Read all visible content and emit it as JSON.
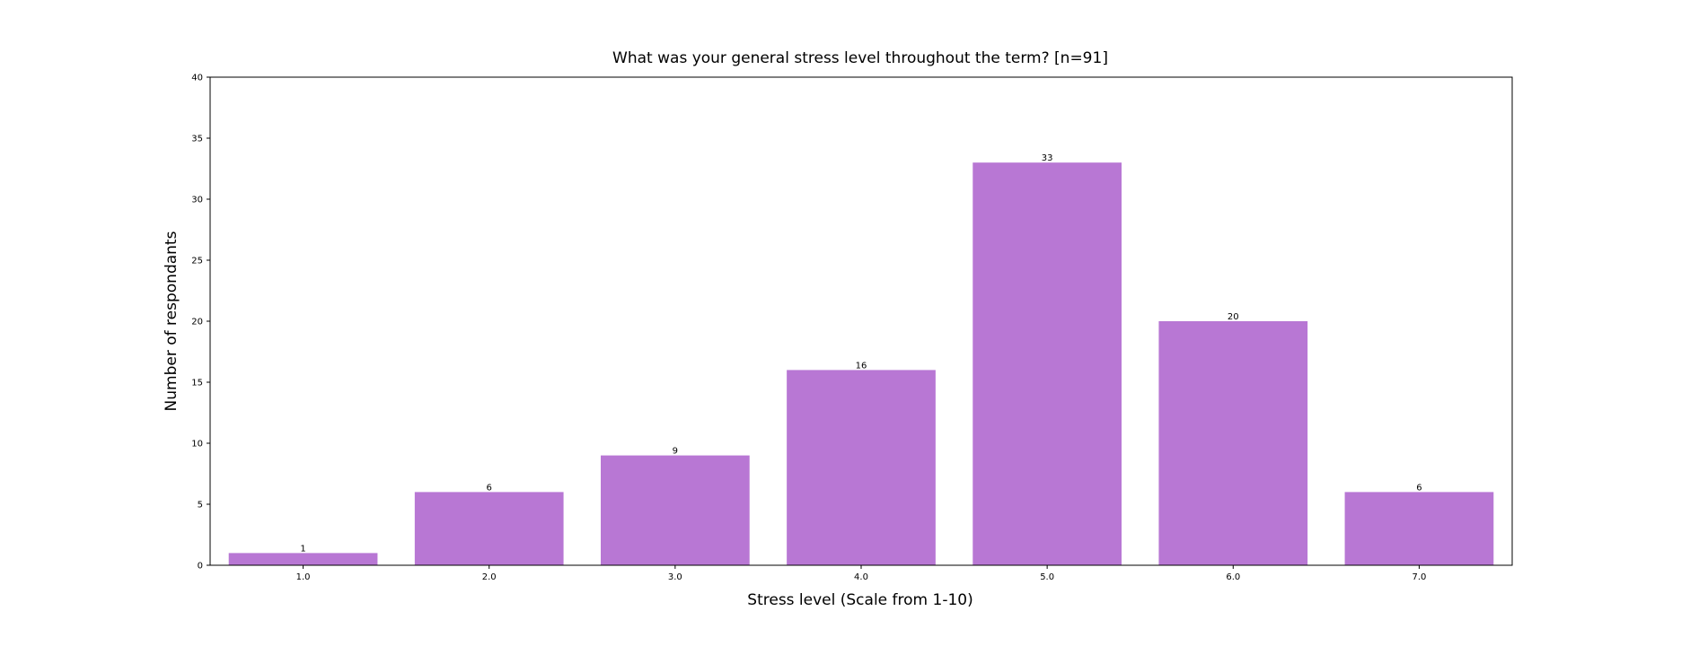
{
  "chart_data": {
    "type": "bar",
    "title": "What was your general stress level throughout the term? [n=91]",
    "xlabel": "Stress level (Scale from 1-10)",
    "ylabel": "Number of respondants",
    "categories": [
      "1.0",
      "2.0",
      "3.0",
      "4.0",
      "5.0",
      "6.0",
      "7.0"
    ],
    "values": [
      1,
      6,
      9,
      16,
      33,
      20,
      6
    ],
    "data_labels": [
      "1",
      "6",
      "9",
      "16",
      "33",
      "20",
      "6"
    ],
    "ylim": [
      0,
      40
    ],
    "yticks": [
      0,
      5,
      10,
      15,
      20,
      25,
      30,
      35,
      40
    ],
    "ytick_labels": [
      "0",
      "5",
      "10",
      "15",
      "20",
      "25",
      "30",
      "35",
      "40"
    ],
    "bar_color": "#b877d4",
    "grid": false,
    "legend": "none"
  }
}
